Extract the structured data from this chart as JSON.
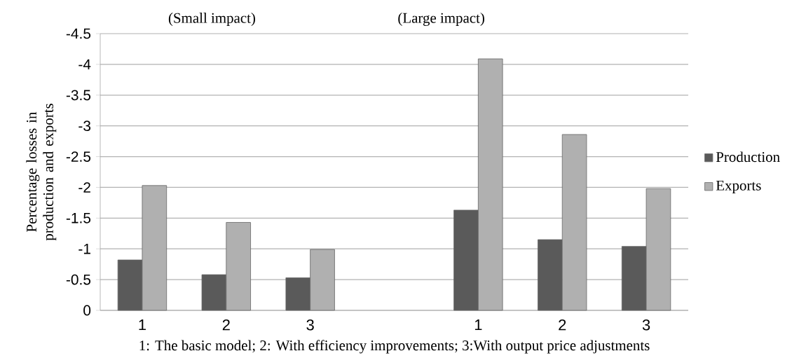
{
  "chart_data": {
    "type": "bar",
    "categories": [
      "1",
      "2",
      "3",
      null,
      "1",
      "2",
      "3"
    ],
    "series": [
      {
        "name": "Production",
        "color": "#5a5a5a",
        "values": [
          -0.82,
          -0.58,
          -0.53,
          null,
          -1.63,
          -1.15,
          -1.04
        ]
      },
      {
        "name": "Exports",
        "color": "#b0b0b0",
        "values": [
          -2.03,
          -1.43,
          -0.99,
          null,
          -4.09,
          -2.86,
          -1.98
        ]
      }
    ],
    "ylim": [
      0,
      -4.5
    ],
    "yticks": [
      0,
      -0.5,
      -1,
      -1.5,
      -2,
      -2.5,
      -3,
      -3.5,
      -4,
      -4.5
    ],
    "ylabel": "Percentage losses in production and exports",
    "xlabel": "1: The basic model; 2: With efficiency improvements; 3:With output price adjustments",
    "annotations": [
      "(Small impact)",
      "(Large impact)"
    ],
    "grid": "y",
    "legend": "right"
  }
}
